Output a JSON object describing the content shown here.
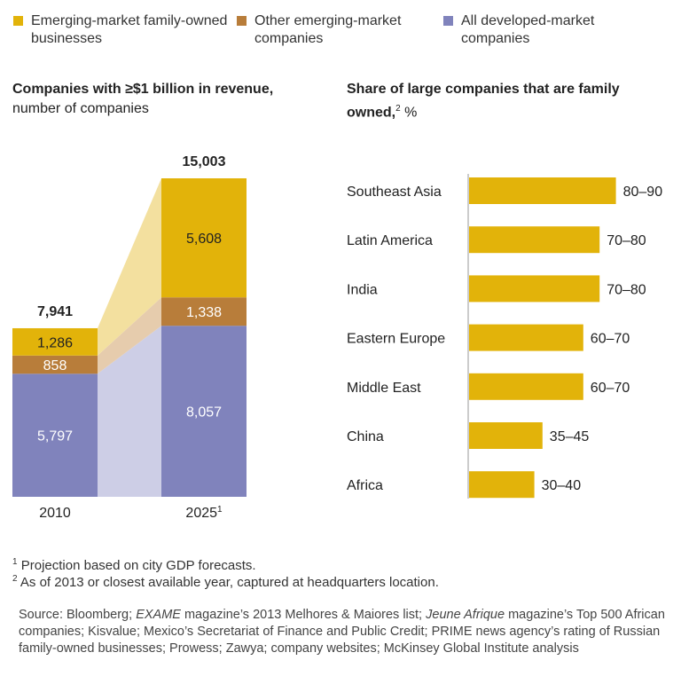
{
  "legend": [
    {
      "label": "Emerging-market family-owned businesses",
      "color": "#e2b30a"
    },
    {
      "label": "Other emerging-market companies",
      "color": "#b87d3a"
    },
    {
      "label": "All developed-market companies",
      "color": "#8083bc"
    }
  ],
  "chart_data": [
    {
      "type": "bar",
      "stacked": true,
      "title": "Companies with ≥$1 billion in revenue,",
      "subtitle": "number of companies",
      "categories": [
        "2010",
        "2025"
      ],
      "category_footnotes": [
        "",
        "1"
      ],
      "totals": [
        "7,941",
        "15,003"
      ],
      "series": [
        {
          "name": "All developed-market companies",
          "values": [
            5797,
            8057
          ],
          "labels": [
            "5,797",
            "8,057"
          ]
        },
        {
          "name": "Other emerging-market companies",
          "values": [
            858,
            1338
          ],
          "labels": [
            "858",
            "1,338"
          ]
        },
        {
          "name": "Emerging-market family-owned businesses",
          "values": [
            1286,
            5608
          ],
          "labels": [
            "1,286",
            "5,608"
          ]
        }
      ]
    },
    {
      "type": "bar",
      "orientation": "horizontal",
      "title": "Share of large companies that are family owned,",
      "title_footnote": "2",
      "unit": "%",
      "categories": [
        "Southeast Asia",
        "Latin America",
        "India",
        "Eastern Europe",
        "Middle East",
        "China",
        "Africa"
      ],
      "ranges": [
        [
          80,
          90
        ],
        [
          70,
          80
        ],
        [
          70,
          80
        ],
        [
          60,
          70
        ],
        [
          60,
          70
        ],
        [
          35,
          45
        ],
        [
          30,
          40
        ]
      ],
      "labels": [
        "80–90",
        "70–80",
        "70–80",
        "60–70",
        "60–70",
        "35–45",
        "30–40"
      ],
      "color": "#e2b30a"
    }
  ],
  "footnotes": [
    {
      "mark": "1",
      "text": "Projection based on city GDP forecasts."
    },
    {
      "mark": "2",
      "text": "As of 2013 or closest available year, captured at headquarters location."
    }
  ],
  "source": {
    "prefix": "Source: Bloomberg; ",
    "em1": "EXAME",
    "mid1": " magazine’s 2013 Melhores & Maiores list; ",
    "em2": "Jeune Afrique",
    "rest": " magazine’s Top 500 African companies; Kisvalue; Mexico’s Secretariat of Finance and Public Credit; PRIME news agency’s rating of Russian family-owned businesses; Prowess; Zawya; company websites; McKinsey Global Institute analysis"
  }
}
